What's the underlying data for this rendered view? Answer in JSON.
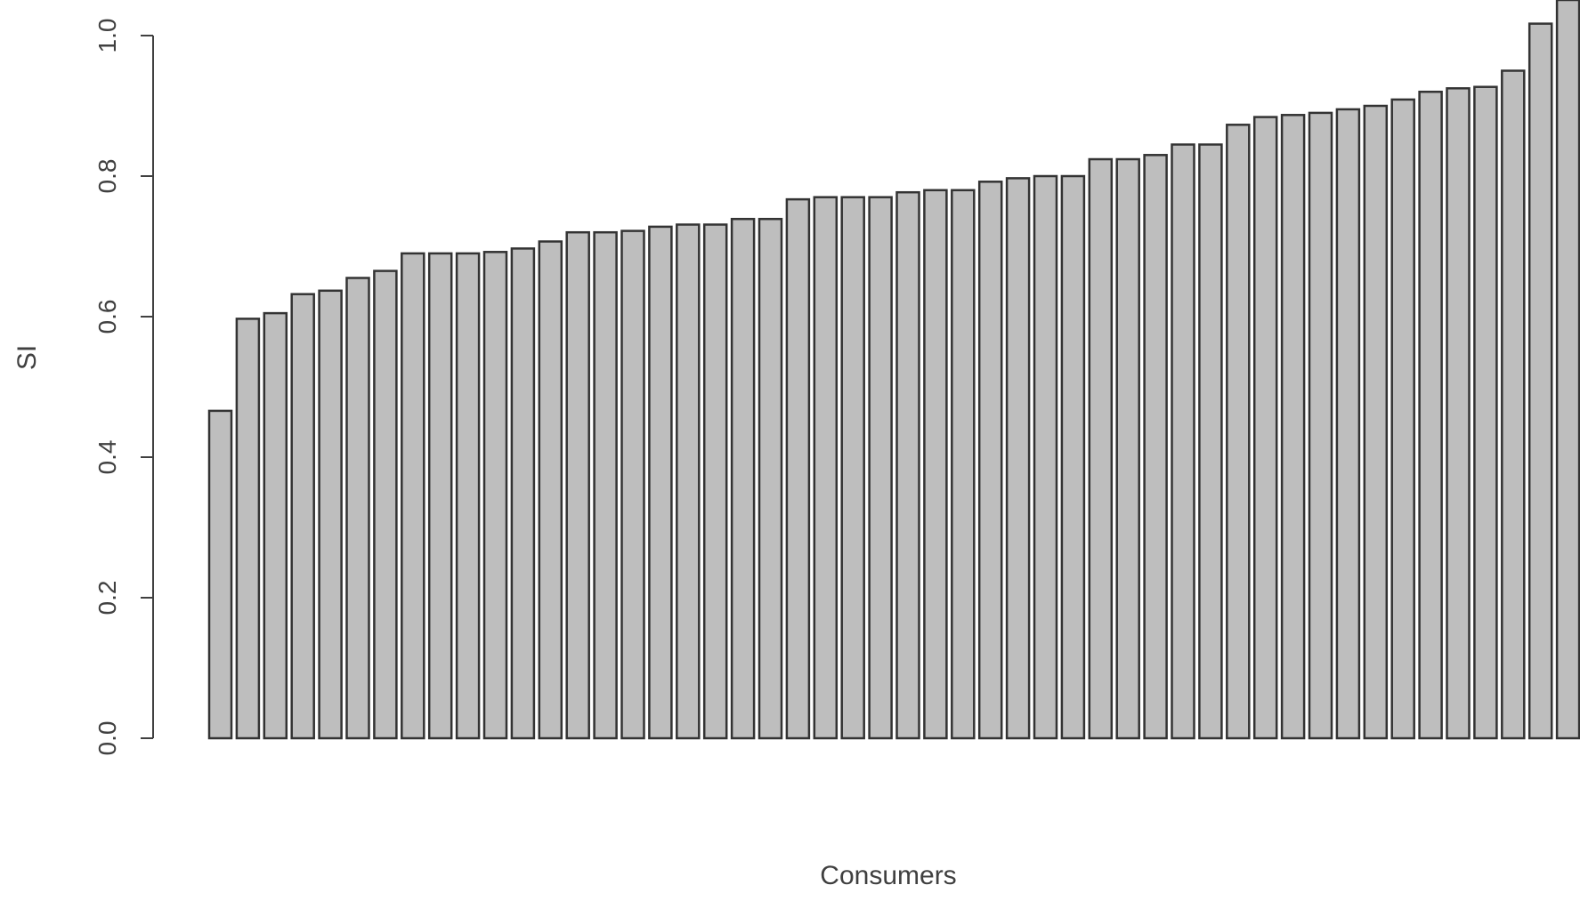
{
  "chart_data": {
    "type": "bar",
    "title": "",
    "xlabel": "Consumers",
    "ylabel": "SI",
    "ylim": [
      0,
      1.0
    ],
    "yticks": [
      "0.0",
      "0.2",
      "0.4",
      "0.6",
      "0.8",
      "1.0"
    ],
    "bar_color": "#bebebe",
    "border_color": "#333333",
    "grid": false,
    "values": [
      0.466,
      0.597,
      0.605,
      0.632,
      0.637,
      0.655,
      0.665,
      0.69,
      0.69,
      0.69,
      0.692,
      0.697,
      0.707,
      0.72,
      0.72,
      0.722,
      0.728,
      0.731,
      0.731,
      0.739,
      0.739,
      0.767,
      0.77,
      0.77,
      0.77,
      0.777,
      0.78,
      0.78,
      0.792,
      0.797,
      0.8,
      0.8,
      0.824,
      0.824,
      0.83,
      0.845,
      0.845,
      0.873,
      0.884,
      0.887,
      0.89,
      0.895,
      0.9,
      0.909,
      0.92,
      0.925,
      0.927,
      0.95,
      1.017,
      1.08
    ]
  }
}
